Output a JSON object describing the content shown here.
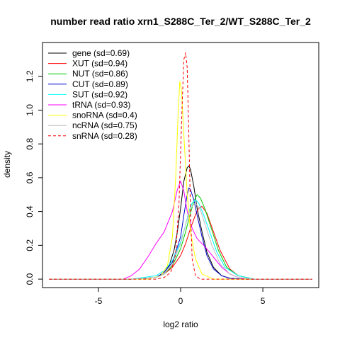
{
  "chart_data": {
    "type": "line",
    "title": "number read ratio xrn1_S288C_Ter_2/WT_S288C_Ter_2",
    "xlabel": "log2 ratio",
    "ylabel": "density",
    "xlim": [
      -8.4,
      8.4
    ],
    "ylim": [
      -0.05,
      1.4
    ],
    "x_ticks": [
      -5,
      0,
      5
    ],
    "x_tick_labels": [
      "-5",
      "0",
      "5"
    ],
    "y_ticks": [
      0.0,
      0.2,
      0.4,
      0.6,
      0.8,
      1.0,
      1.2
    ],
    "y_tick_labels": [
      "0.0",
      "0.2",
      "0.4",
      "0.6",
      "0.8",
      "1.0",
      "1.2"
    ],
    "grid": false,
    "legend_position": "top-left",
    "series": [
      {
        "name": "gene (sd=0.69)",
        "color": "#000000",
        "dash": false,
        "x": [
          -8.0,
          -3.0,
          -1.5,
          -1.0,
          -0.7,
          -0.4,
          -0.2,
          0.0,
          0.2,
          0.4,
          0.5,
          0.6,
          0.8,
          1.0,
          1.3,
          1.6,
          2.0,
          2.5,
          3.0,
          3.5,
          4.0,
          8.0
        ],
        "y": [
          0.0,
          0.0,
          0.01,
          0.04,
          0.08,
          0.17,
          0.28,
          0.42,
          0.58,
          0.66,
          0.67,
          0.65,
          0.55,
          0.42,
          0.28,
          0.16,
          0.07,
          0.02,
          0.005,
          0.0,
          0.0,
          0.0
        ]
      },
      {
        "name": "XUT (sd=0.94)",
        "color": "#ff0000",
        "dash": false,
        "x": [
          -8.0,
          -3.0,
          -1.5,
          -1.0,
          -0.5,
          0.0,
          0.3,
          0.6,
          0.9,
          1.1,
          1.3,
          1.6,
          2.0,
          2.4,
          3.0,
          3.5,
          4.5,
          8.0
        ],
        "y": [
          0.0,
          0.0,
          0.01,
          0.03,
          0.07,
          0.14,
          0.21,
          0.3,
          0.38,
          0.42,
          0.43,
          0.39,
          0.28,
          0.17,
          0.06,
          0.02,
          0.0,
          0.0
        ]
      },
      {
        "name": "NUT (sd=0.86)",
        "color": "#00cc00",
        "dash": false,
        "x": [
          -8.0,
          -3.0,
          -1.5,
          -1.0,
          -0.5,
          0.0,
          0.3,
          0.6,
          0.8,
          1.0,
          1.2,
          1.5,
          1.9,
          2.3,
          2.8,
          3.5,
          4.5,
          8.0
        ],
        "y": [
          0.0,
          0.0,
          0.01,
          0.03,
          0.08,
          0.18,
          0.28,
          0.39,
          0.46,
          0.5,
          0.48,
          0.41,
          0.29,
          0.17,
          0.07,
          0.02,
          0.0,
          0.0
        ]
      },
      {
        "name": "CUT (sd=0.89)",
        "color": "#0000cc",
        "dash": false,
        "x": [
          -8.0,
          -3.0,
          -1.5,
          -1.0,
          -0.5,
          0.0,
          0.2,
          0.4,
          0.5,
          0.6,
          0.8,
          1.0,
          1.3,
          1.6,
          2.0,
          2.5,
          3.0,
          4.0,
          8.0
        ],
        "y": [
          0.0,
          0.0,
          0.01,
          0.04,
          0.1,
          0.25,
          0.38,
          0.5,
          0.54,
          0.53,
          0.47,
          0.38,
          0.25,
          0.14,
          0.06,
          0.02,
          0.005,
          0.0,
          0.0
        ]
      },
      {
        "name": "SUT (sd=0.92)",
        "color": "#00ffff",
        "dash": false,
        "x": [
          -8.0,
          -3.0,
          -1.5,
          -1.0,
          -0.5,
          0.0,
          0.3,
          0.5,
          0.7,
          0.9,
          1.1,
          1.4,
          1.8,
          2.2,
          2.7,
          3.5,
          4.5,
          8.0
        ],
        "y": [
          0.0,
          0.0,
          0.02,
          0.05,
          0.11,
          0.22,
          0.32,
          0.4,
          0.45,
          0.47,
          0.45,
          0.38,
          0.27,
          0.16,
          0.07,
          0.02,
          0.0,
          0.0
        ]
      },
      {
        "name": "tRNA (sd=0.93)",
        "color": "#ff00ff",
        "dash": false,
        "x": [
          -8.0,
          -3.5,
          -3.0,
          -2.5,
          -2.0,
          -1.5,
          -1.0,
          -0.5,
          -0.2,
          0.0,
          0.2,
          0.4,
          0.7,
          1.0,
          1.5,
          2.0,
          2.5,
          3.0,
          3.5,
          4.0,
          8.0
        ],
        "y": [
          0.0,
          0.0,
          0.02,
          0.06,
          0.13,
          0.21,
          0.28,
          0.4,
          0.53,
          0.58,
          0.52,
          0.4,
          0.3,
          0.24,
          0.19,
          0.13,
          0.07,
          0.03,
          0.01,
          0.0,
          0.0
        ]
      },
      {
        "name": "snoRNA (sd=0.4)",
        "color": "#ffff00",
        "dash": false,
        "x": [
          -8.0,
          -2.0,
          -1.2,
          -0.8,
          -0.5,
          -0.3,
          -0.15,
          -0.05,
          0.05,
          0.2,
          0.4,
          0.6,
          0.9,
          1.3,
          2.0,
          8.0
        ],
        "y": [
          0.0,
          0.0,
          0.02,
          0.08,
          0.25,
          0.6,
          0.98,
          1.17,
          1.12,
          0.85,
          0.5,
          0.28,
          0.12,
          0.03,
          0.0,
          0.0
        ]
      },
      {
        "name": "ncRNA (sd=0.75)",
        "color": "#bebebe",
        "dash": false,
        "x": [
          -8.0,
          -3.0,
          -1.5,
          -1.0,
          -0.5,
          0.0,
          0.3,
          0.6,
          0.9,
          1.2,
          1.5,
          1.9,
          2.4,
          3.0,
          3.5,
          4.5,
          8.0
        ],
        "y": [
          0.0,
          0.0,
          0.01,
          0.03,
          0.09,
          0.21,
          0.32,
          0.42,
          0.45,
          0.41,
          0.32,
          0.2,
          0.09,
          0.03,
          0.01,
          0.0,
          0.0
        ]
      },
      {
        "name": "snRNA (sd=0.28)",
        "color": "#ff0000",
        "dash": true,
        "x": [
          -8.0,
          -1.5,
          -1.0,
          -0.6,
          -0.3,
          -0.1,
          0.0,
          0.1,
          0.2,
          0.3,
          0.4,
          0.5,
          0.6,
          0.7,
          0.9,
          1.2,
          8.0
        ],
        "y": [
          0.0,
          0.0,
          0.01,
          0.04,
          0.15,
          0.45,
          0.75,
          1.05,
          1.3,
          1.34,
          1.25,
          0.85,
          0.4,
          0.12,
          0.02,
          0.0,
          0.0
        ]
      }
    ]
  }
}
